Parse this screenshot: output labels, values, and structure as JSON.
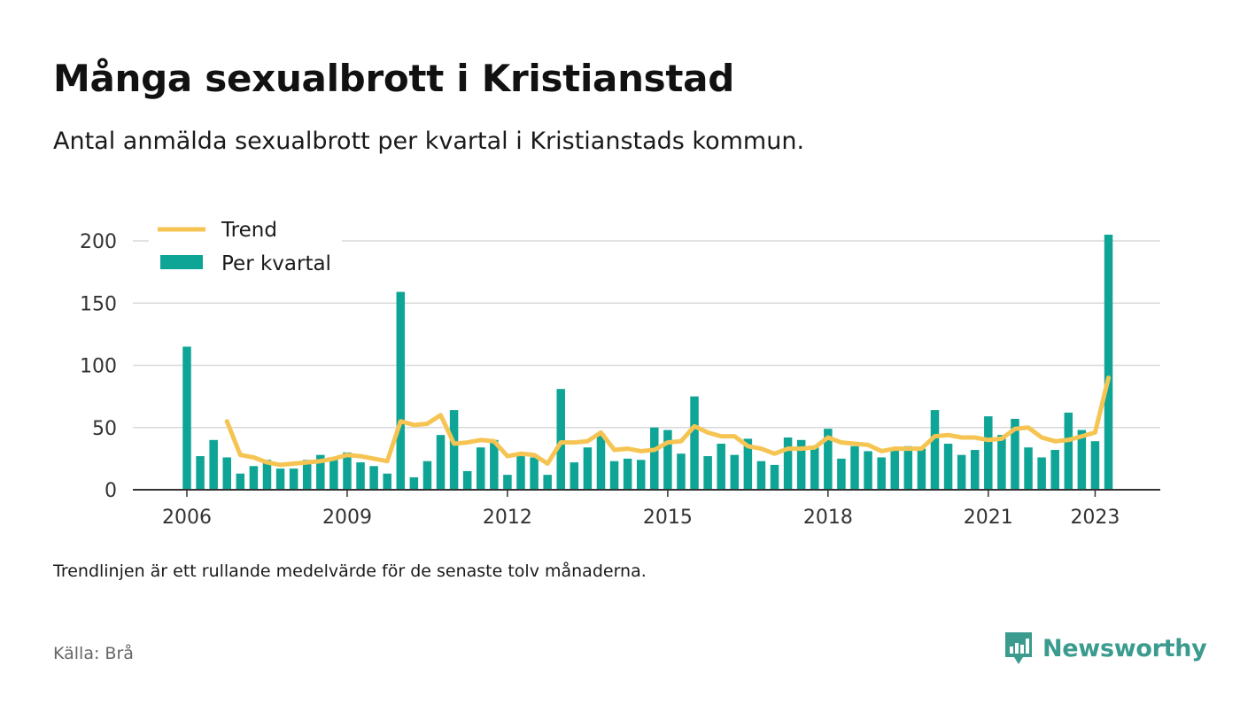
{
  "header": {
    "title": "Många sexualbrott i Kristianstad",
    "subtitle": "Antal anmälda sexualbrott per kvartal i Kristianstads kommun."
  },
  "legend": {
    "trend_label": "Trend",
    "bar_label": "Per kvartal"
  },
  "footer": {
    "note": "Trendlinjen är ett rullande medelvärde för de senaste tolv månaderna.",
    "source": "Källa: Brå",
    "brand": "Newsworthy"
  },
  "colors": {
    "bars": "#0ea597",
    "trend": "#f6c453",
    "brand": "#3a9b8e"
  },
  "chart_data": {
    "type": "bar",
    "title": "Många sexualbrott i Kristianstad",
    "subtitle": "Antal anmälda sexualbrott per kvartal i Kristianstads kommun.",
    "start_quarter": "2006 Q1",
    "ylim": [
      0,
      200
    ],
    "yticks": [
      0,
      50,
      100,
      150,
      200
    ],
    "xticks": [
      "2006",
      "2009",
      "2012",
      "2015",
      "2018",
      "2021",
      "2023"
    ],
    "grid": true,
    "legend_position": "top-left",
    "series": [
      {
        "name": "Per kvartal",
        "type": "bar",
        "values": [
          115,
          27,
          40,
          26,
          13,
          19,
          24,
          17,
          17,
          24,
          28,
          24,
          30,
          22,
          19,
          13,
          159,
          10,
          23,
          44,
          64,
          15,
          34,
          40,
          12,
          27,
          26,
          12,
          81,
          22,
          34,
          45,
          23,
          25,
          24,
          50,
          48,
          29,
          75,
          27,
          37,
          28,
          41,
          23,
          20,
          42,
          40,
          34,
          49,
          25,
          35,
          31,
          26,
          33,
          35,
          33,
          64,
          37,
          28,
          32,
          59,
          44,
          57,
          34,
          26,
          32,
          62,
          48,
          39,
          205
        ]
      },
      {
        "name": "Trend",
        "type": "line",
        "values": [
          null,
          null,
          null,
          55,
          28,
          26,
          22,
          20,
          21,
          22,
          23,
          25,
          28,
          27,
          25,
          23,
          55,
          52,
          53,
          60,
          37,
          38,
          40,
          39,
          27,
          29,
          28,
          21,
          38,
          38,
          39,
          46,
          32,
          33,
          31,
          32,
          38,
          39,
          51,
          46,
          43,
          43,
          35,
          33,
          29,
          33,
          33,
          34,
          42,
          38,
          37,
          36,
          31,
          33,
          33,
          33,
          43,
          44,
          42,
          42,
          40,
          41,
          49,
          50,
          42,
          39,
          40,
          43,
          46,
          90
        ]
      }
    ]
  }
}
